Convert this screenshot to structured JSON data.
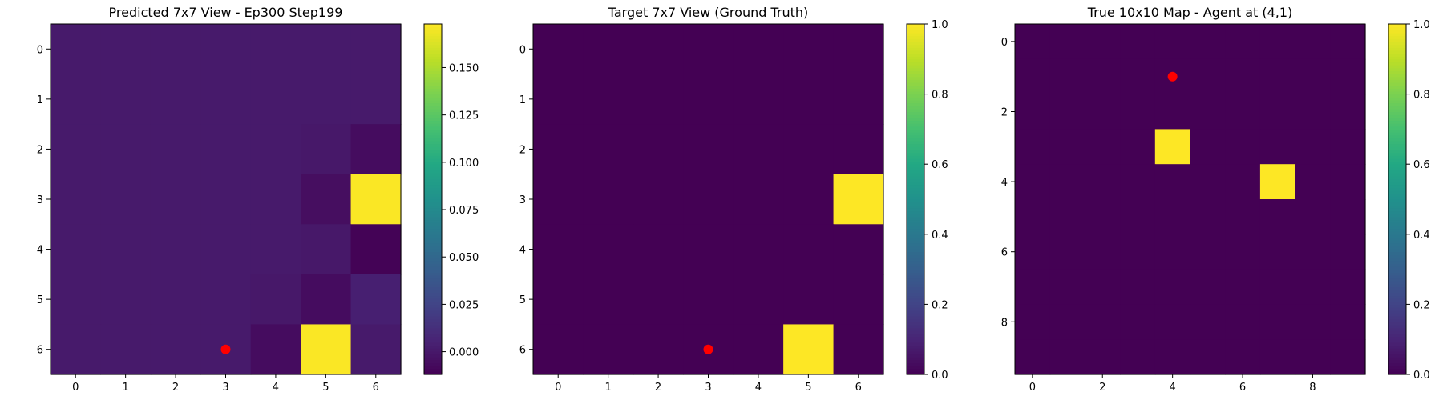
{
  "chart_data": [
    {
      "type": "heatmap",
      "title": "Predicted 7x7 View - Ep300 Step199",
      "rows": 7,
      "cols": 7,
      "x_ticks": [
        0,
        1,
        2,
        3,
        4,
        5,
        6
      ],
      "y_ticks": [
        0,
        1,
        2,
        3,
        4,
        5,
        6
      ],
      "values": [
        [
          0.001,
          0.001,
          0.001,
          0.001,
          0.001,
          0.001,
          0.001
        ],
        [
          0.001,
          0.001,
          0.001,
          0.001,
          0.001,
          0.001,
          0.001
        ],
        [
          0.001,
          0.001,
          0.001,
          0.001,
          0.001,
          0.0,
          -0.006
        ],
        [
          0.001,
          0.001,
          0.001,
          0.001,
          0.001,
          -0.005,
          0.172
        ],
        [
          0.001,
          0.001,
          0.001,
          0.001,
          0.001,
          0.0,
          -0.011
        ],
        [
          0.001,
          0.001,
          0.001,
          0.001,
          0.0,
          -0.006,
          0.004
        ],
        [
          0.001,
          0.001,
          0.001,
          0.001,
          -0.006,
          0.172,
          0.001
        ]
      ],
      "vmin": -0.012,
      "vmax": 0.173,
      "colormap": "viridis",
      "colorbar_ticks": [
        "0.000",
        "0.025",
        "0.050",
        "0.075",
        "0.100",
        "0.125",
        "0.150"
      ],
      "colorbar_tick_values": [
        0.0,
        0.025,
        0.05,
        0.075,
        0.1,
        0.125,
        0.15
      ],
      "marker": {
        "row": 6,
        "col": 3,
        "color": "#ff0000"
      }
    },
    {
      "type": "heatmap",
      "title": "Target 7x7 View (Ground Truth)",
      "rows": 7,
      "cols": 7,
      "x_ticks": [
        0,
        1,
        2,
        3,
        4,
        5,
        6
      ],
      "y_ticks": [
        0,
        1,
        2,
        3,
        4,
        5,
        6
      ],
      "values": [
        [
          0,
          0,
          0,
          0,
          0,
          0,
          0
        ],
        [
          0,
          0,
          0,
          0,
          0,
          0,
          0
        ],
        [
          0,
          0,
          0,
          0,
          0,
          0,
          0
        ],
        [
          0,
          0,
          0,
          0,
          0,
          0,
          1
        ],
        [
          0,
          0,
          0,
          0,
          0,
          0,
          0
        ],
        [
          0,
          0,
          0,
          0,
          0,
          0,
          0
        ],
        [
          0,
          0,
          0,
          0,
          0,
          1,
          0
        ]
      ],
      "vmin": 0,
      "vmax": 1,
      "colormap": "viridis",
      "colorbar_ticks": [
        "0.0",
        "0.2",
        "0.4",
        "0.6",
        "0.8",
        "1.0"
      ],
      "colorbar_tick_values": [
        0,
        0.2,
        0.4,
        0.6,
        0.8,
        1.0
      ],
      "marker": {
        "row": 6,
        "col": 3,
        "color": "#ff0000"
      }
    },
    {
      "type": "heatmap",
      "title": "True 10x10 Map - Agent at (4,1)",
      "rows": 10,
      "cols": 10,
      "x_ticks": [
        0,
        2,
        4,
        6,
        8
      ],
      "y_ticks": [
        0,
        2,
        4,
        6,
        8
      ],
      "values": [
        [
          0,
          0,
          0,
          0,
          0,
          0,
          0,
          0,
          0,
          0
        ],
        [
          0,
          0,
          0,
          0,
          0,
          0,
          0,
          0,
          0,
          0
        ],
        [
          0,
          0,
          0,
          0,
          0,
          0,
          0,
          0,
          0,
          0
        ],
        [
          0,
          0,
          0,
          0,
          1,
          0,
          0,
          0,
          0,
          0
        ],
        [
          0,
          0,
          0,
          0,
          0,
          0,
          0,
          1,
          0,
          0
        ],
        [
          0,
          0,
          0,
          0,
          0,
          0,
          0,
          0,
          0,
          0
        ],
        [
          0,
          0,
          0,
          0,
          0,
          0,
          0,
          0,
          0,
          0
        ],
        [
          0,
          0,
          0,
          0,
          0,
          0,
          0,
          0,
          0,
          0
        ],
        [
          0,
          0,
          0,
          0,
          0,
          0,
          0,
          0,
          0,
          0
        ],
        [
          0,
          0,
          0,
          0,
          0,
          0,
          0,
          0,
          0,
          0
        ]
      ],
      "vmin": 0,
      "vmax": 1,
      "colormap": "viridis",
      "colorbar_ticks": [
        "0.0",
        "0.2",
        "0.4",
        "0.6",
        "0.8",
        "1.0"
      ],
      "colorbar_tick_values": [
        0,
        0.2,
        0.4,
        0.6,
        0.8,
        1.0
      ],
      "marker": {
        "row": 1,
        "col": 4,
        "color": "#ff0000"
      }
    }
  ]
}
